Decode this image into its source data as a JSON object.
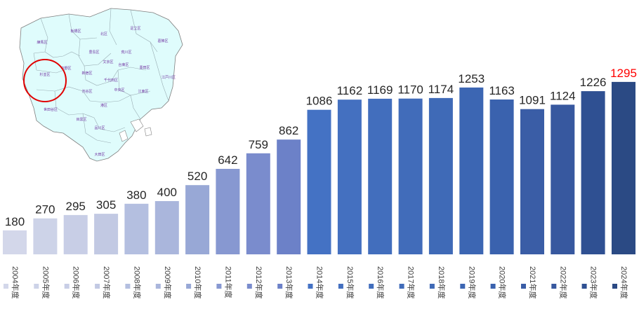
{
  "chart_data": {
    "type": "bar",
    "categories": [
      "2004年度",
      "2005年度",
      "2006年度",
      "2007年度",
      "2008年度",
      "2009年度",
      "2010年度",
      "2011年度",
      "2012年度",
      "2013年度",
      "2014年度",
      "2015年度",
      "2016年度",
      "2017年度",
      "2018年度",
      "2019年度",
      "2020年度",
      "2021年度",
      "2022年度",
      "2023年度",
      "2024年度"
    ],
    "values": [
      180,
      270,
      295,
      305,
      380,
      400,
      520,
      642,
      759,
      862,
      1086,
      1162,
      1169,
      1170,
      1174,
      1253,
      1163,
      1091,
      1124,
      1226,
      1295
    ],
    "colors": [
      "#d3d7ea",
      "#cdd3e8",
      "#c8cee6",
      "#c2c9e3",
      "#b4bfe0",
      "#aab6dc",
      "#98a8d6",
      "#8798d1",
      "#7a8ccd",
      "#6c81c8",
      "#4472c4",
      "#4470c0",
      "#426ebd",
      "#416cba",
      "#3f6ab7",
      "#3c66b3",
      "#3a62ae",
      "#3a5da6",
      "#37589f",
      "#2f5092",
      "#2b4a84"
    ],
    "highlight_color": "#ff0000",
    "label_color": "#262626",
    "ylim": [
      0,
      1400
    ],
    "title": "",
    "xlabel": "",
    "ylabel": "",
    "legend": "none",
    "grid": false
  },
  "map": {
    "wards": [
      "足立区",
      "板橋区",
      "北区",
      "葛飾区",
      "練馬区",
      "豊島区",
      "荒川区",
      "中野区",
      "文京区",
      "台東区",
      "杉並区",
      "新宿区",
      "墨田区",
      "江戸川区",
      "千代田区",
      "中央区",
      "渋谷区",
      "江東区",
      "港区",
      "世田谷区",
      "目黒区",
      "品川区",
      "大田区"
    ],
    "highlighted_ward": "杉並区",
    "fill_color": "#dffcfc",
    "highlight_circle_color": "#e00000"
  }
}
